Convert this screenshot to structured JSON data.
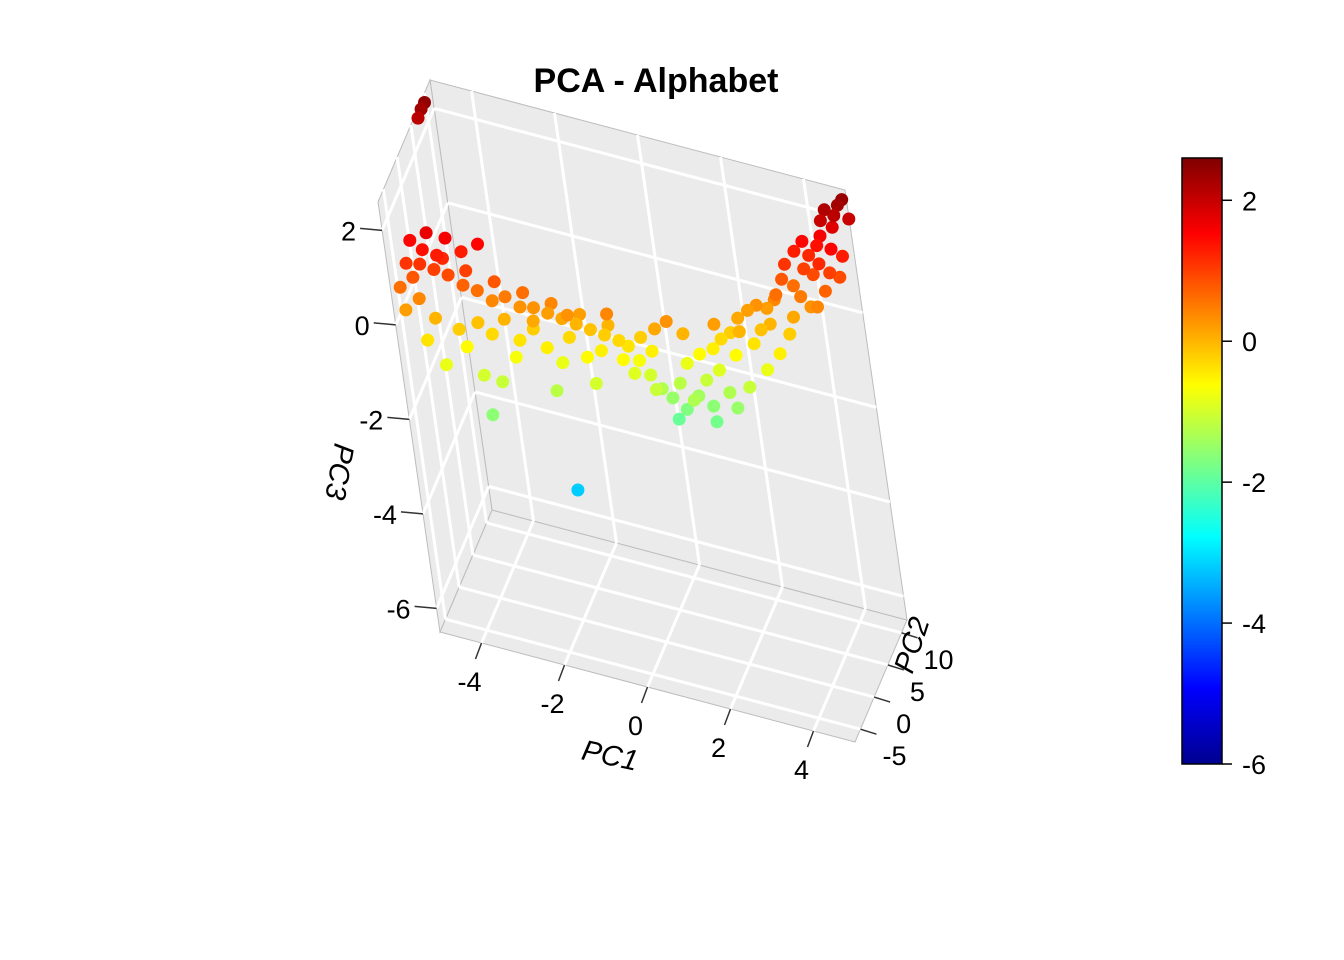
{
  "chart_data": {
    "type": "scatter",
    "title": "PCA - Alphabet",
    "xlabel": "PC1",
    "ylabel": "PC2",
    "zlabel": "PC3",
    "x_ticks": [
      "-4",
      "-2",
      "0",
      "2",
      "4"
    ],
    "y_ticks": [
      "-5",
      "0",
      "5",
      "10"
    ],
    "z_ticks": [
      "-6",
      "-4",
      "-2",
      "0",
      "2"
    ],
    "xlim": [
      -5,
      5
    ],
    "ylim": [
      -7,
      12
    ],
    "zlim": [
      -6.5,
      2.6
    ],
    "grid": true,
    "panel_background": "#ebebeb",
    "grid_color": "#ffffff",
    "color_by": "PC3",
    "colorbar": {
      "ticks": [
        "2",
        "0",
        "-2",
        "-4",
        "-6"
      ],
      "range": [
        -6,
        2.6
      ],
      "placement": "right",
      "palette": [
        "#00008f",
        "#0000ff",
        "#0080ff",
        "#00ffff",
        "#80ff80",
        "#ffff00",
        "#ff8000",
        "#ff0000",
        "#800000"
      ]
    },
    "points": [
      {
        "x": -5.1,
        "y": 9.5,
        "z": 2.3
      },
      {
        "x": -5.0,
        "y": 9.6,
        "z": 2.45
      },
      {
        "x": -5.2,
        "y": 9.4,
        "z": 2.1
      },
      {
        "x": 4.8,
        "y": 11.5,
        "z": 2.3
      },
      {
        "x": 4.7,
        "y": 11.2,
        "z": 2.1
      },
      {
        "x": 4.5,
        "y": 11.0,
        "z": 2.2
      },
      {
        "x": 4.9,
        "y": 11.8,
        "z": 2.4
      },
      {
        "x": 4.6,
        "y": 11.4,
        "z": 1.8
      },
      {
        "x": 4.3,
        "y": 11.0,
        "z": 1.6
      },
      {
        "x": 4.4,
        "y": 10.6,
        "z": 2.0
      },
      {
        "x": 5.0,
        "y": 11.9,
        "z": 2.0
      },
      {
        "x": 4.2,
        "y": 10.8,
        "z": 1.4
      },
      {
        "x": 4.6,
        "y": 10.2,
        "z": 1.5
      },
      {
        "x": 4.0,
        "y": 10.4,
        "z": 1.2
      },
      {
        "x": 4.8,
        "y": 10.9,
        "z": 1.3
      },
      {
        "x": 3.9,
        "y": 9.6,
        "z": 1.0
      },
      {
        "x": 4.5,
        "y": 10.0,
        "z": 1.0
      },
      {
        "x": 4.1,
        "y": 9.8,
        "z": 0.9
      },
      {
        "x": 3.6,
        "y": 9.4,
        "z": 0.6
      },
      {
        "x": 4.4,
        "y": 9.2,
        "z": 0.7
      },
      {
        "x": 3.8,
        "y": 8.8,
        "z": 0.5
      },
      {
        "x": 4.2,
        "y": 8.6,
        "z": 0.4
      },
      {
        "x": 3.4,
        "y": 8.6,
        "z": 0.8
      },
      {
        "x": 4.0,
        "y": 9.0,
        "z": 0.3
      },
      {
        "x": 3.2,
        "y": 8.0,
        "z": 0.4
      },
      {
        "x": 3.0,
        "y": 7.8,
        "z": 0.2
      },
      {
        "x": 3.6,
        "y": 8.2,
        "z": 0.1
      },
      {
        "x": 3.3,
        "y": 7.5,
        "z": 0.6
      },
      {
        "x": 2.8,
        "y": 7.2,
        "z": 0.3
      },
      {
        "x": 3.1,
        "y": 7.0,
        "z": 0.0
      },
      {
        "x": 2.6,
        "y": 6.8,
        "z": 0.2
      },
      {
        "x": 2.9,
        "y": 6.5,
        "z": -0.1
      },
      {
        "x": 3.5,
        "y": 7.6,
        "z": -0.2
      },
      {
        "x": 2.4,
        "y": 6.0,
        "z": 0.1
      },
      {
        "x": 2.2,
        "y": 5.6,
        "z": -0.2
      },
      {
        "x": 2.7,
        "y": 6.2,
        "z": -0.4
      },
      {
        "x": 2.0,
        "y": 5.0,
        "z": -0.3
      },
      {
        "x": 1.8,
        "y": 4.6,
        "z": -0.5
      },
      {
        "x": 2.3,
        "y": 5.2,
        "z": -0.6
      },
      {
        "x": 1.5,
        "y": 4.0,
        "z": -0.6
      },
      {
        "x": 1.9,
        "y": 4.4,
        "z": -0.9
      },
      {
        "x": 1.2,
        "y": 3.5,
        "z": -0.8
      },
      {
        "x": 1.6,
        "y": 3.8,
        "z": -1.1
      },
      {
        "x": 1.0,
        "y": 3.0,
        "z": -1.2
      },
      {
        "x": 1.4,
        "y": 3.2,
        "z": -1.4
      },
      {
        "x": 0.8,
        "y": 2.6,
        "z": -1.5
      },
      {
        "x": 1.1,
        "y": 2.8,
        "z": -1.7
      },
      {
        "x": 0.6,
        "y": 2.2,
        "z": -1.3
      },
      {
        "x": 1.7,
        "y": 3.6,
        "z": -1.6
      },
      {
        "x": 2.1,
        "y": 4.2,
        "z": -1.3
      },
      {
        "x": 0.9,
        "y": 2.4,
        "z": -1.9
      },
      {
        "x": 0.4,
        "y": 1.8,
        "z": -1.0
      },
      {
        "x": 0.2,
        "y": 1.5,
        "z": -0.7
      },
      {
        "x": 0.5,
        "y": 2.0,
        "z": -0.5
      },
      {
        "x": 0.0,
        "y": 1.2,
        "z": -0.4
      },
      {
        "x": -0.2,
        "y": 1.0,
        "z": -0.3
      },
      {
        "x": 0.3,
        "y": 1.6,
        "z": -0.2
      },
      {
        "x": -0.5,
        "y": 0.6,
        "z": -0.2
      },
      {
        "x": -0.8,
        "y": 0.2,
        "z": -0.1
      },
      {
        "x": -0.4,
        "y": 0.8,
        "z": 0.0
      },
      {
        "x": -1.1,
        "y": -0.2,
        "z": 0.0
      },
      {
        "x": -1.4,
        "y": -0.6,
        "z": 0.1
      },
      {
        "x": -1.0,
        "y": 0.0,
        "z": 0.2
      },
      {
        "x": -1.7,
        "y": -1.0,
        "z": 0.2
      },
      {
        "x": -2.0,
        "y": -1.4,
        "z": 0.3
      },
      {
        "x": -1.6,
        "y": -0.8,
        "z": 0.4
      },
      {
        "x": -2.3,
        "y": -1.8,
        "z": 0.3
      },
      {
        "x": -2.6,
        "y": -2.2,
        "z": 0.5
      },
      {
        "x": -2.2,
        "y": -1.6,
        "z": 0.6
      },
      {
        "x": -2.9,
        "y": -2.6,
        "z": 0.4
      },
      {
        "x": -3.2,
        "y": -3.0,
        "z": 0.6
      },
      {
        "x": -2.8,
        "y": -2.4,
        "z": 0.8
      },
      {
        "x": -3.5,
        "y": -3.4,
        "z": 0.7
      },
      {
        "x": -3.8,
        "y": -3.8,
        "z": 0.9
      },
      {
        "x": -3.4,
        "y": -3.2,
        "z": 1.0
      },
      {
        "x": -4.1,
        "y": -4.2,
        "z": 1.0
      },
      {
        "x": -4.4,
        "y": -4.6,
        "z": 1.1
      },
      {
        "x": -4.0,
        "y": -4.0,
        "z": 1.3
      },
      {
        "x": -4.7,
        "y": -5.0,
        "z": 1.1
      },
      {
        "x": -4.3,
        "y": -4.4,
        "z": 1.4
      },
      {
        "x": -3.9,
        "y": -3.6,
        "z": 1.2
      },
      {
        "x": -4.6,
        "y": -4.8,
        "z": 0.8
      },
      {
        "x": -4.9,
        "y": -5.4,
        "z": 0.6
      },
      {
        "x": -4.5,
        "y": -5.0,
        "z": 0.4
      },
      {
        "x": -4.8,
        "y": -5.8,
        "z": 0.2
      },
      {
        "x": -4.2,
        "y": -4.6,
        "z": 0.0
      },
      {
        "x": -3.7,
        "y": -4.0,
        "z": -0.2
      },
      {
        "x": -4.4,
        "y": -5.4,
        "z": -0.4
      },
      {
        "x": -3.3,
        "y": -3.0,
        "z": -0.1
      },
      {
        "x": -3.0,
        "y": -2.8,
        "z": -0.3
      },
      {
        "x": -2.7,
        "y": -2.2,
        "z": 0.0
      },
      {
        "x": -2.4,
        "y": -2.0,
        "z": -0.4
      },
      {
        "x": -2.1,
        "y": -1.2,
        "z": -0.2
      },
      {
        "x": -1.8,
        "y": -1.4,
        "z": -0.5
      },
      {
        "x": -1.3,
        "y": -0.4,
        "z": -0.3
      },
      {
        "x": -0.9,
        "y": -0.6,
        "z": -0.6
      },
      {
        "x": -0.6,
        "y": 0.2,
        "z": -0.5
      },
      {
        "x": -0.1,
        "y": 0.4,
        "z": -0.6
      },
      {
        "x": 0.1,
        "y": 0.8,
        "z": -0.9
      },
      {
        "x": -1.5,
        "y": -1.0,
        "z": -0.8
      },
      {
        "x": -2.5,
        "y": -2.6,
        "z": -0.7
      },
      {
        "x": -3.6,
        "y": -3.6,
        "z": -0.6
      },
      {
        "x": -2.0,
        "y": -2.0,
        "z": 0.1
      },
      {
        "x": -1.2,
        "y": -1.2,
        "z": 0.3
      },
      {
        "x": -0.3,
        "y": -0.2,
        "z": 0.4
      },
      {
        "x": 0.7,
        "y": 1.4,
        "z": 0.1
      },
      {
        "x": 1.3,
        "y": 2.4,
        "z": 0.0
      },
      {
        "x": 2.5,
        "y": 4.8,
        "z": 0.0
      },
      {
        "x": 2.0,
        "y": 3.6,
        "z": 0.2
      },
      {
        "x": 1.0,
        "y": 1.6,
        "z": 0.3
      },
      {
        "x": -3.1,
        "y": -2.2,
        "z": 1.5
      },
      {
        "x": -3.8,
        "y": -3.2,
        "z": 1.6
      },
      {
        "x": -4.2,
        "y": -3.8,
        "z": 1.7
      },
      {
        "x": -4.6,
        "y": -4.2,
        "z": 1.5
      },
      {
        "x": -3.5,
        "y": -2.6,
        "z": 1.3
      },
      {
        "x": 3.7,
        "y": 9.8,
        "z": 1.3
      },
      {
        "x": 3.9,
        "y": 10.2,
        "z": 1.5
      },
      {
        "x": 4.3,
        "y": 9.6,
        "z": 1.2
      },
      {
        "x": 3.5,
        "y": 8.9,
        "z": 1.1
      },
      {
        "x": 4.7,
        "y": 10.4,
        "z": 0.9
      },
      {
        "x": -4.0,
        "y": -5.6,
        "z": -0.8
      },
      {
        "x": -3.2,
        "y": -4.4,
        "z": -1.0
      },
      {
        "x": -2.8,
        "y": -4.0,
        "z": -1.1
      },
      {
        "x": -1.6,
        "y": -2.6,
        "z": -1.2
      },
      {
        "x": -0.7,
        "y": -1.4,
        "z": -1.0
      },
      {
        "x": 0.6,
        "y": 0.6,
        "z": -1.1
      },
      {
        "x": 1.4,
        "y": 1.8,
        "z": -1.3
      },
      {
        "x": 1.8,
        "y": 2.8,
        "z": -1.8
      },
      {
        "x": 2.3,
        "y": 3.6,
        "z": -1.5
      },
      {
        "x": 2.6,
        "y": 4.4,
        "z": -1.1
      },
      {
        "x": 3.0,
        "y": 5.6,
        "z": -0.8
      },
      {
        "x": 3.3,
        "y": 6.4,
        "z": -0.5
      },
      {
        "x": -3.0,
        "y": -5.8,
        "z": -1.6
      },
      {
        "x": -1.4,
        "y": -3.0,
        "z": -3.2
      }
    ]
  }
}
